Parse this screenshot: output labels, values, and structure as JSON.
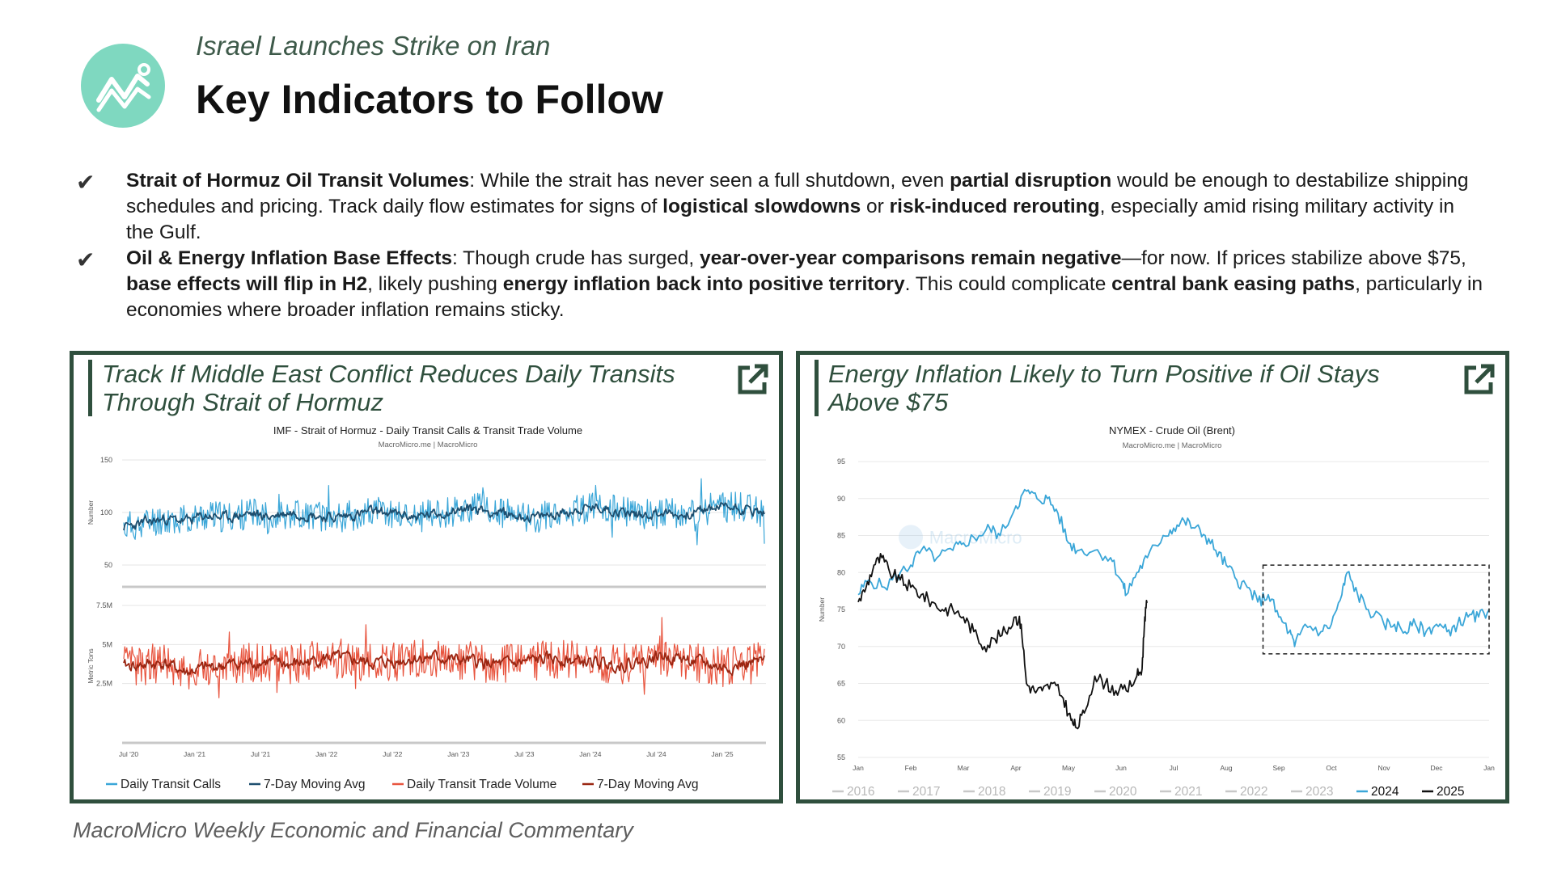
{
  "header": {
    "subtitle": "Israel Launches Strike on Iran",
    "title": "Key Indicators to Follow"
  },
  "bullets": [
    {
      "check": "✔",
      "segments": [
        {
          "t": "Strait of Hormuz Oil Transit Volumes",
          "b": true
        },
        {
          "t": ": While the strait has never seen a full shutdown, even ",
          "b": false
        },
        {
          "t": "partial disruption",
          "b": true
        },
        {
          "t": " would be enough to destabilize shipping schedules and pricing. Track daily flow estimates for signs of ",
          "b": false
        },
        {
          "t": "logistical slowdowns",
          "b": true
        },
        {
          "t": " or ",
          "b": false
        },
        {
          "t": "risk-induced rerouting",
          "b": true
        },
        {
          "t": ", especially amid rising military activity in the Gulf.",
          "b": false
        }
      ]
    },
    {
      "check": "✔",
      "segments": [
        {
          "t": "Oil & Energy Inflation Base Effects",
          "b": true
        },
        {
          "t": ": Though crude has surged, ",
          "b": false
        },
        {
          "t": "year-over-year comparisons remain negative",
          "b": true
        },
        {
          "t": "—for now. If prices stabilize above $75, ",
          "b": false
        },
        {
          "t": "base effects will flip in H2",
          "b": true
        },
        {
          "t": ", likely pushing ",
          "b": false
        },
        {
          "t": "energy inflation back into positive territory",
          "b": true
        },
        {
          "t": ". This could complicate ",
          "b": false
        },
        {
          "t": "central bank easing paths",
          "b": true
        },
        {
          "t": ", particularly in economies where broader inflation remains sticky.",
          "b": false
        }
      ]
    }
  ],
  "panels": {
    "left_title": "Track If Middle East Conflict Reduces Daily Transits Through Strait of Hormuz",
    "right_title": "Energy Inflation Likely to Turn Positive if Oil Stays Above $75"
  },
  "footer": "MacroMicro Weekly Economic and Financial Commentary",
  "colors": {
    "brand_green": "#2f4f3d",
    "logo_mint": "#7fd8c0",
    "calls": "#3aa6d8",
    "calls_avg": "#1d4e6e",
    "volume": "#e8553f",
    "volume_avg": "#9a2612",
    "brent_2024": "#3aa6d8",
    "brent_2025": "#111111"
  },
  "chart_data": [
    {
      "type": "line",
      "title": "IMF - Strait of Hormuz - Daily Transit Calls & Transit Trade Volume",
      "subtitle": "MacroMicro.me | MacroMicro",
      "x_ticks": [
        "Jul '20",
        "Jan '21",
        "Jul '21",
        "Jan '22",
        "Jul '22",
        "Jan '23",
        "Jul '23",
        "Jan '24",
        "Jul '24",
        "Jan '25"
      ],
      "panels": [
        {
          "ylabel": "Number",
          "y_ticks": [
            "150",
            "100",
            "50"
          ],
          "ylim": [
            50,
            150
          ],
          "series": [
            {
              "name": "Daily Transit Calls",
              "values": [
                86,
                90,
                94,
                92,
                97,
                95,
                99,
                96,
                100,
                98,
                95,
                97,
                101,
                99,
                96,
                98,
                102,
                104,
                100,
                97,
                95,
                99,
                103,
                105,
                101,
                98,
                100,
                97,
                102,
                106,
                104,
                99
              ]
            },
            {
              "name": "7-Day Moving Avg",
              "values": [
                86,
                90,
                94,
                92,
                97,
                95,
                99,
                96,
                100,
                98,
                95,
                97,
                101,
                99,
                96,
                98,
                102,
                104,
                100,
                97,
                95,
                99,
                103,
                105,
                101,
                98,
                100,
                97,
                102,
                106,
                104,
                99
              ]
            }
          ]
        },
        {
          "ylabel": "Metric Tons",
          "y_ticks": [
            "7.5M",
            "5M",
            "2.5M"
          ],
          "ylim": [
            0,
            7500000
          ],
          "series": [
            {
              "name": "Daily Transit Trade Volume",
              "values": [
                3600000,
                3700000,
                3800000,
                3200000,
                3500000,
                3700000,
                3800000,
                3900000,
                3700000,
                3900000,
                4200000,
                4000000,
                3800000,
                3900000,
                4100000,
                4200000,
                4000000,
                3900000,
                3700000,
                3800000,
                4000000,
                4100000,
                3900000,
                3800000,
                3700000,
                3900000,
                4300000,
                4100000,
                3800000,
                3500000,
                3700000,
                3900000
              ]
            },
            {
              "name": "7-Day Moving Avg",
              "values": [
                3600000,
                3700000,
                3800000,
                3200000,
                3500000,
                3700000,
                3800000,
                3900000,
                3700000,
                3900000,
                4200000,
                4000000,
                3800000,
                3900000,
                4100000,
                4200000,
                4000000,
                3900000,
                3700000,
                3800000,
                4000000,
                4100000,
                3900000,
                3800000,
                3700000,
                3900000,
                4300000,
                4100000,
                3800000,
                3500000,
                3700000,
                3900000
              ]
            }
          ]
        }
      ],
      "legend": [
        "Daily Transit Calls",
        "7-Day Moving Avg",
        "Daily Transit Trade Volume",
        "7-Day Moving Avg"
      ],
      "legend_position": "bottom"
    },
    {
      "type": "line",
      "title": "NYMEX - Crude Oil (Brent)",
      "subtitle": "MacroMicro.me | MacroMicro",
      "watermark": "MacroMicro",
      "ylabel": "Number",
      "ylim": [
        55,
        95
      ],
      "y_ticks": [
        95,
        90,
        85,
        80,
        75,
        70,
        65,
        60,
        55
      ],
      "x_ticks": [
        "Jan",
        "Feb",
        "Mar",
        "Apr",
        "May",
        "Jun",
        "Jul",
        "Aug",
        "Sep",
        "Oct",
        "Nov",
        "Dec",
        "Jan"
      ],
      "x_range": [
        0,
        12
      ],
      "series": [
        {
          "name": "2024",
          "points": [
            [
              0,
              77
            ],
            [
              0.2,
              79
            ],
            [
              0.5,
              78
            ],
            [
              0.8,
              80
            ],
            [
              1.0,
              81
            ],
            [
              1.2,
              83
            ],
            [
              1.5,
              82
            ],
            [
              1.8,
              83
            ],
            [
              2.0,
              84
            ],
            [
              2.3,
              85
            ],
            [
              2.5,
              86
            ],
            [
              2.7,
              85
            ],
            [
              3.0,
              89
            ],
            [
              3.2,
              91
            ],
            [
              3.4,
              90
            ],
            [
              3.6,
              90
            ],
            [
              3.8,
              88
            ],
            [
              4.0,
              84
            ],
            [
              4.2,
              83
            ],
            [
              4.5,
              83
            ],
            [
              4.8,
              82
            ],
            [
              5.0,
              79
            ],
            [
              5.1,
              77
            ],
            [
              5.3,
              80
            ],
            [
              5.5,
              82
            ],
            [
              5.8,
              85
            ],
            [
              6.0,
              86
            ],
            [
              6.2,
              87
            ],
            [
              6.4,
              86
            ],
            [
              6.6,
              85
            ],
            [
              6.8,
              83
            ],
            [
              7.0,
              81
            ],
            [
              7.2,
              79
            ],
            [
              7.4,
              78
            ],
            [
              7.6,
              76
            ],
            [
              7.8,
              77
            ],
            [
              8.0,
              74
            ],
            [
              8.2,
              72
            ],
            [
              8.3,
              70
            ],
            [
              8.5,
              73
            ],
            [
              8.8,
              72
            ],
            [
              9.0,
              73
            ],
            [
              9.2,
              77
            ],
            [
              9.3,
              80
            ],
            [
              9.5,
              77
            ],
            [
              9.7,
              75
            ],
            [
              10.0,
              73
            ],
            [
              10.2,
              73
            ],
            [
              10.4,
              72
            ],
            [
              10.6,
              73
            ],
            [
              10.8,
              72
            ],
            [
              11.0,
              73
            ],
            [
              11.2,
              72
            ],
            [
              11.4,
              73
            ],
            [
              11.6,
              74
            ],
            [
              11.8,
              74
            ],
            [
              12.0,
              75
            ]
          ]
        },
        {
          "name": "2025",
          "points": [
            [
              0,
              76
            ],
            [
              0.15,
              78
            ],
            [
              0.3,
              81
            ],
            [
              0.45,
              82
            ],
            [
              0.6,
              80
            ],
            [
              0.8,
              79
            ],
            [
              1.0,
              78
            ],
            [
              1.2,
              77
            ],
            [
              1.4,
              76
            ],
            [
              1.6,
              75
            ],
            [
              1.8,
              75
            ],
            [
              2.0,
              74
            ],
            [
              2.2,
              72
            ],
            [
              2.4,
              70
            ],
            [
              2.6,
              71
            ],
            [
              2.8,
              72
            ],
            [
              3.0,
              74
            ],
            [
              3.1,
              73
            ],
            [
              3.2,
              65
            ],
            [
              3.35,
              64
            ],
            [
              3.5,
              64
            ],
            [
              3.7,
              65
            ],
            [
              3.9,
              63
            ],
            [
              4.05,
              60
            ],
            [
              4.15,
              59
            ],
            [
              4.3,
              61
            ],
            [
              4.5,
              66
            ],
            [
              4.7,
              65
            ],
            [
              4.9,
              64
            ],
            [
              5.1,
              64
            ],
            [
              5.3,
              66
            ],
            [
              5.4,
              67
            ],
            [
              5.45,
              74
            ],
            [
              5.5,
              76
            ]
          ]
        },
        {
          "name": "2016"
        },
        {
          "name": "2017"
        },
        {
          "name": "2018"
        },
        {
          "name": "2019"
        },
        {
          "name": "2020"
        },
        {
          "name": "2021"
        },
        {
          "name": "2022"
        },
        {
          "name": "2023"
        }
      ],
      "annotation": "dashed box Sep–Dec 2024, 69–81",
      "legend": [
        "2016",
        "2017",
        "2018",
        "2019",
        "2020",
        "2021",
        "2022",
        "2023",
        "2024",
        "2025"
      ],
      "legend_active": [
        "2024",
        "2025"
      ],
      "legend_position": "bottom",
      "grid": true
    }
  ]
}
